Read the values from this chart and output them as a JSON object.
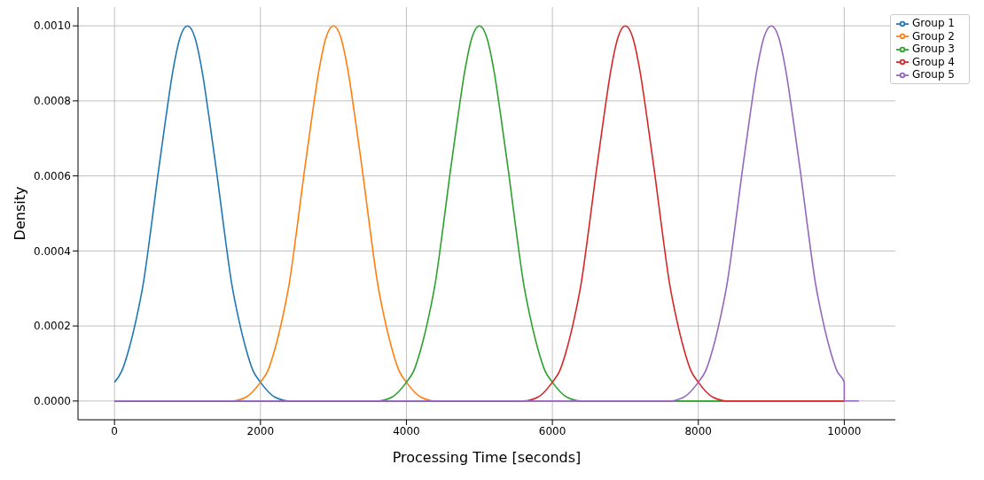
{
  "chart_data": {
    "type": "line",
    "xlabel": "Processing Time [seconds]",
    "ylabel": "Density",
    "xlim": [
      -500,
      10700
    ],
    "ylim": [
      -5e-05,
      0.00105
    ],
    "xticks": [
      0,
      2000,
      4000,
      6000,
      8000,
      10000
    ],
    "yticks": [
      {
        "value": 0,
        "label": "0.0000"
      },
      {
        "value": 0.0002,
        "label": "0.0002"
      },
      {
        "value": 0.0004,
        "label": "0.0004"
      },
      {
        "value": 0.0006,
        "label": "0.0006"
      },
      {
        "value": 0.0008,
        "label": "0.0008"
      },
      {
        "value": 0.001,
        "label": "0.0010"
      }
    ],
    "grid": true,
    "legend": "top right",
    "marker": "none",
    "line_style": "solid",
    "series": [
      {
        "name": "Group 1",
        "color": "#1f77b4",
        "x": [
          0,
          100,
          200,
          300,
          400,
          500,
          600,
          700,
          800,
          900,
          1000,
          1100,
          1200,
          1300,
          1400,
          1500,
          1600,
          1700,
          1800,
          1900,
          2000,
          2200,
          2400,
          10000
        ],
        "values": [
          5e-05,
          8e-05,
          0.00014,
          0.00022,
          0.00032,
          0.00046,
          0.00061,
          0.00075,
          0.00088,
          0.00097,
          0.001,
          0.00097,
          0.00088,
          0.00075,
          0.00061,
          0.00046,
          0.00032,
          0.00022,
          0.00014,
          8e-05,
          5e-05,
          1e-05,
          0,
          0
        ]
      },
      {
        "name": "Group 2",
        "color": "#ff7f0e",
        "x": [
          0,
          1600,
          1800,
          2000,
          2100,
          2200,
          2300,
          2400,
          2500,
          2600,
          2700,
          2800,
          2900,
          3000,
          3100,
          3200,
          3300,
          3400,
          3500,
          3600,
          3700,
          3800,
          3900,
          4000,
          4200,
          4400,
          10000
        ],
        "values": [
          0,
          0,
          1e-05,
          5e-05,
          8e-05,
          0.00014,
          0.00022,
          0.00032,
          0.00046,
          0.00061,
          0.00075,
          0.00088,
          0.00097,
          0.001,
          0.00097,
          0.00088,
          0.00075,
          0.00061,
          0.00046,
          0.00032,
          0.00022,
          0.00014,
          8e-05,
          5e-05,
          1e-05,
          0,
          0
        ]
      },
      {
        "name": "Group 3",
        "color": "#2ca02c",
        "x": [
          0,
          3600,
          3800,
          4000,
          4100,
          4200,
          4300,
          4400,
          4500,
          4600,
          4700,
          4800,
          4900,
          5000,
          5100,
          5200,
          5300,
          5400,
          5500,
          5600,
          5700,
          5800,
          5900,
          6000,
          6200,
          6400,
          10000
        ],
        "values": [
          0,
          0,
          1e-05,
          5e-05,
          8e-05,
          0.00014,
          0.00022,
          0.00032,
          0.00046,
          0.00061,
          0.00075,
          0.00088,
          0.00097,
          0.001,
          0.00097,
          0.00088,
          0.00075,
          0.00061,
          0.00046,
          0.00032,
          0.00022,
          0.00014,
          8e-05,
          5e-05,
          1e-05,
          0,
          0
        ]
      },
      {
        "name": "Group 4",
        "color": "#d62728",
        "x": [
          0,
          5600,
          5800,
          6000,
          6100,
          6200,
          6300,
          6400,
          6500,
          6600,
          6700,
          6800,
          6900,
          7000,
          7100,
          7200,
          7300,
          7400,
          7500,
          7600,
          7700,
          7800,
          7900,
          8000,
          8200,
          8400,
          10000
        ],
        "values": [
          0,
          0,
          1e-05,
          5e-05,
          8e-05,
          0.00014,
          0.00022,
          0.00032,
          0.00046,
          0.00061,
          0.00075,
          0.00088,
          0.00097,
          0.001,
          0.00097,
          0.00088,
          0.00075,
          0.00061,
          0.00046,
          0.00032,
          0.00022,
          0.00014,
          8e-05,
          5e-05,
          1e-05,
          0,
          0
        ]
      },
      {
        "name": "Group 5",
        "color": "#9467bd",
        "x": [
          0,
          7600,
          7800,
          8000,
          8100,
          8200,
          8300,
          8400,
          8500,
          8600,
          8700,
          8800,
          8900,
          9000,
          9100,
          9200,
          9300,
          9400,
          9500,
          9600,
          9700,
          9800,
          9900,
          10000,
          10000,
          10200
        ],
        "values": [
          0,
          0,
          1e-05,
          5e-05,
          8e-05,
          0.00014,
          0.00022,
          0.00032,
          0.00046,
          0.00061,
          0.00075,
          0.00088,
          0.00097,
          0.001,
          0.00097,
          0.00088,
          0.00075,
          0.00061,
          0.00046,
          0.00032,
          0.00022,
          0.00014,
          8e-05,
          5e-05,
          0,
          0
        ]
      }
    ]
  }
}
